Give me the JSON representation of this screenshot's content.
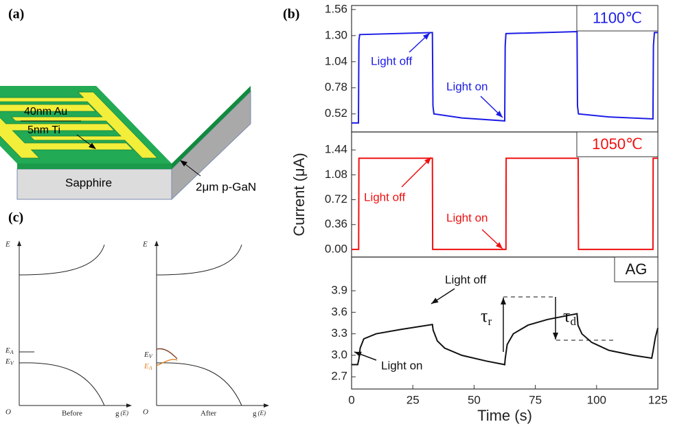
{
  "panel_labels": [
    "(a)",
    "(b)",
    "(c)"
  ],
  "panel_a": {
    "top_layer": "40nm Au",
    "bottom_layer": "5nm Ti",
    "substrate": "Sapphire",
    "film": "2μm p-GaN"
  },
  "panel_c": [
    {
      "axis_y": "E",
      "origin": "O",
      "ea": {
        "main": "E",
        "sub": "A"
      },
      "ev": {
        "main": "E",
        "sub": "V"
      },
      "caption": "Before",
      "axis_x": {
        "main": "g",
        "paren": "(E)"
      }
    },
    {
      "axis_y": "E",
      "origin": "O",
      "ea": {
        "main": "E",
        "sub": "A"
      },
      "ev": {
        "main": "E",
        "sub": "V"
      },
      "caption": "After",
      "axis_x": {
        "main": "g",
        "paren": "(E)"
      }
    }
  ],
  "chart_data": [
    {
      "type": "line",
      "box_label": "1100℃",
      "color": "#1c1ce6",
      "annotations": [
        "Light off",
        "Light on"
      ],
      "xlim": [
        0,
        125
      ],
      "ylim": [
        0.34,
        1.6
      ],
      "yticks": [
        0.52,
        0.78,
        1.04,
        {
          "value": 1.3,
          "label": "1.30"
        },
        1.56
      ],
      "x": [
        0,
        2.8,
        3,
        3.3,
        33,
        33.2,
        33.6,
        45,
        62.5,
        62.7,
        63,
        92,
        92.2,
        92.6,
        105,
        123,
        123.2,
        123.6,
        125
      ],
      "values": [
        0.43,
        0.43,
        1.25,
        1.31,
        1.33,
        0.6,
        0.52,
        0.48,
        0.45,
        1.2,
        1.32,
        1.34,
        0.6,
        0.52,
        0.49,
        0.47,
        1.2,
        1.33,
        1.33
      ]
    },
    {
      "type": "line",
      "box_label": "1050℃",
      "color": "#f01010",
      "annotations": [
        "Light off",
        "Light on"
      ],
      "ylabel": "Current (μA)",
      "xlim": [
        0,
        125
      ],
      "ylim": [
        -0.11,
        1.7
      ],
      "yticks": [
        {
          "value": 0,
          "label": "0.00"
        },
        0.36,
        0.72,
        1.08,
        1.44
      ],
      "x": [
        0,
        2.9,
        3,
        33,
        33.1,
        63,
        63.1,
        92.5,
        92.6,
        123,
        123.1,
        125
      ],
      "values": [
        0,
        0,
        1.32,
        1.32,
        0,
        0,
        1.32,
        1.32,
        0,
        0,
        1.32,
        1.32
      ]
    },
    {
      "type": "line",
      "box_label": "AG",
      "color": "#111111",
      "annotations": [
        "Light off",
        "Light on"
      ],
      "tau_r": {
        "symbol": "τ",
        "sub": "r"
      },
      "tau_d": {
        "symbol": "τ",
        "sub": "d"
      },
      "xlabel": "Time (s)",
      "xlim": [
        0,
        125
      ],
      "ylim": [
        2.53,
        4.37
      ],
      "xticks": [
        0,
        25,
        50,
        75,
        100,
        125
      ],
      "yticks": [
        2.7,
        {
          "value": 3,
          "label": "3.0"
        },
        3.3,
        3.6,
        3.9
      ],
      "x": [
        0,
        2.5,
        3,
        3.5,
        5,
        10,
        20,
        33,
        33.3,
        35,
        38,
        45,
        55,
        62.5,
        62.7,
        63.5,
        66,
        72,
        80,
        92,
        92.4,
        94,
        98,
        105,
        115,
        122.5,
        123,
        124,
        125
      ],
      "values": [
        2.87,
        2.87,
        2.95,
        3.1,
        3.23,
        3.3,
        3.36,
        3.43,
        3.35,
        3.2,
        3.1,
        3.0,
        2.92,
        2.87,
        2.95,
        3.15,
        3.3,
        3.42,
        3.5,
        3.58,
        3.42,
        3.3,
        3.18,
        3.07,
        3.0,
        2.96,
        3.05,
        3.25,
        3.38
      ]
    }
  ]
}
